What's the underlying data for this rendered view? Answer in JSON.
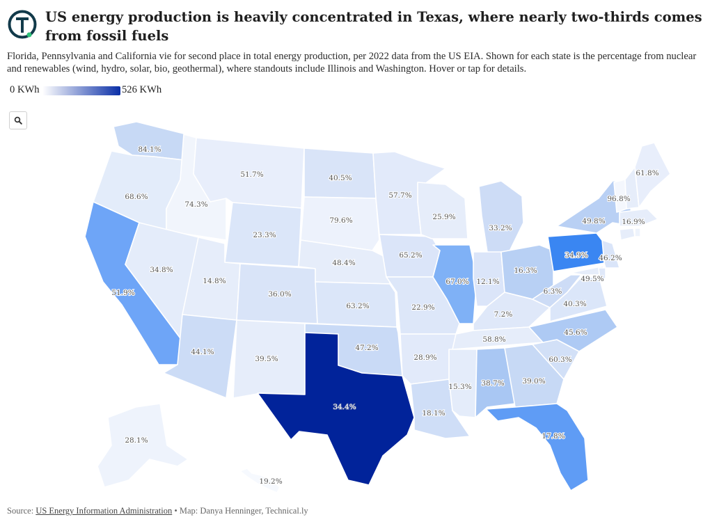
{
  "header": {
    "title": "US energy production is heavily concentrated in Texas, where nearly two-thirds comes from fossil fuels",
    "subtitle": "Florida, Pennsylvania and California vie for second place in total energy production, per 2022 data from the US EIA. Shown for each state is the percentage from nuclear and renewables (wind, hydro, solar, bio, geothermal), where standouts include Illinois and Washington. Hover or tap for details."
  },
  "legend": {
    "min_label": "0 KWh",
    "max_label": "526 KWh",
    "color_low": "#ffffff",
    "color_high": "#0a2fa7"
  },
  "footer": {
    "source_prefix": "Source:",
    "source_link": "US Energy Information Administration",
    "credit": "• Map: Danya Henninger, Technical.ly"
  },
  "brand": {
    "logo_ring": "#123a4a",
    "logo_dot": "#2fc27a"
  },
  "map": {
    "states": [
      {
        "id": "WA",
        "label": "84.1%",
        "color": "#c7d9f5"
      },
      {
        "id": "OR",
        "label": "68.6%",
        "color": "#e3ecfa"
      },
      {
        "id": "CA",
        "label": "51.9%",
        "color": "#6ea5f7"
      },
      {
        "id": "ID",
        "label": "74.3%",
        "color": "#f1f5fc"
      },
      {
        "id": "NV",
        "label": "34.8%",
        "color": "#e4ecfa"
      },
      {
        "id": "MT",
        "label": "51.7%",
        "color": "#e8eefb"
      },
      {
        "id": "WY",
        "label": "23.3%",
        "color": "#dbe6f9"
      },
      {
        "id": "UT",
        "label": "14.8%",
        "color": "#e6edfa"
      },
      {
        "id": "AZ",
        "label": "44.1%",
        "color": "#ccdcf6"
      },
      {
        "id": "CO",
        "label": "36.0%",
        "color": "#d9e4f8"
      },
      {
        "id": "NM",
        "label": "39.5%",
        "color": "#e6edfa"
      },
      {
        "id": "ND",
        "label": "40.5%",
        "color": "#d9e4f8"
      },
      {
        "id": "SD",
        "label": "79.6%",
        "color": "#edf2fc"
      },
      {
        "id": "NE",
        "label": "48.4%",
        "color": "#e6edfa"
      },
      {
        "id": "KS",
        "label": "63.2%",
        "color": "#dbe6f9"
      },
      {
        "id": "OK",
        "label": "47.2%",
        "color": "#c9daf6"
      },
      {
        "id": "TX",
        "label": "34.4%",
        "color": "#01239a"
      },
      {
        "id": "MN",
        "label": "57.7%",
        "color": "#e2eafa"
      },
      {
        "id": "IA",
        "label": "65.2%",
        "color": "#dbe5f9"
      },
      {
        "id": "MO",
        "label": "22.9%",
        "color": "#dde7f9"
      },
      {
        "id": "AR",
        "label": "28.9%",
        "color": "#e2eafa"
      },
      {
        "id": "LA",
        "label": "18.1%",
        "color": "#cfdef7"
      },
      {
        "id": "WI",
        "label": "25.9%",
        "color": "#e6edfa"
      },
      {
        "id": "IL",
        "label": "67.0%",
        "color": "#7fb1f6"
      },
      {
        "id": "MI",
        "label": "33.2%",
        "color": "#cddcf6"
      },
      {
        "id": "IN",
        "label": "12.1%",
        "color": "#dbe5f9"
      },
      {
        "id": "OH",
        "label": "16.3%",
        "color": "#b8d0f4"
      },
      {
        "id": "KY",
        "label": "7.2%",
        "color": "#dfe8f9"
      },
      {
        "id": "TN",
        "label": "58.8%",
        "color": "#e6edfa"
      },
      {
        "id": "MS",
        "label": "15.3%",
        "color": "#e4ecfa"
      },
      {
        "id": "AL",
        "label": "38.7%",
        "color": "#a9c7f3"
      },
      {
        "id": "GA",
        "label": "39.0%",
        "color": "#c7d9f5"
      },
      {
        "id": "FL",
        "label": "17.8%",
        "color": "#5f9cf5"
      },
      {
        "id": "SC",
        "label": "60.3%",
        "color": "#d2e0f7"
      },
      {
        "id": "NC",
        "label": "45.6%",
        "color": "#aecaf4"
      },
      {
        "id": "VA",
        "label": "40.3%",
        "color": "#dbe6f9"
      },
      {
        "id": "WV",
        "label": "6.3%",
        "color": "#cddcf6"
      },
      {
        "id": "PA",
        "label": "34.9%",
        "color": "#3a86f2"
      },
      {
        "id": "NY",
        "label": "49.8%",
        "color": "#b9d0f4"
      },
      {
        "id": "NJ",
        "label": "46.2%",
        "color": "#dae5f9"
      },
      {
        "id": "MD",
        "label": "49.5%",
        "color": "#e6edfa"
      },
      {
        "id": "DE",
        "label": "",
        "color": "#dfe8f9"
      },
      {
        "id": "CT",
        "label": "",
        "color": "#e6edfa"
      },
      {
        "id": "RI",
        "label": "",
        "color": "#eef3fc"
      },
      {
        "id": "MA",
        "label": "16.9%",
        "color": "#e6edfa"
      },
      {
        "id": "VT",
        "label": "",
        "color": "#f4f7fd"
      },
      {
        "id": "NH",
        "label": "96.8%",
        "color": "#e6edfa"
      },
      {
        "id": "ME",
        "label": "61.8%",
        "color": "#e8eefb"
      },
      {
        "id": "AK",
        "label": "28.1%",
        "color": "#eef3fc"
      },
      {
        "id": "HI",
        "label": "19.2%",
        "color": "#f6f9fe"
      }
    ]
  }
}
